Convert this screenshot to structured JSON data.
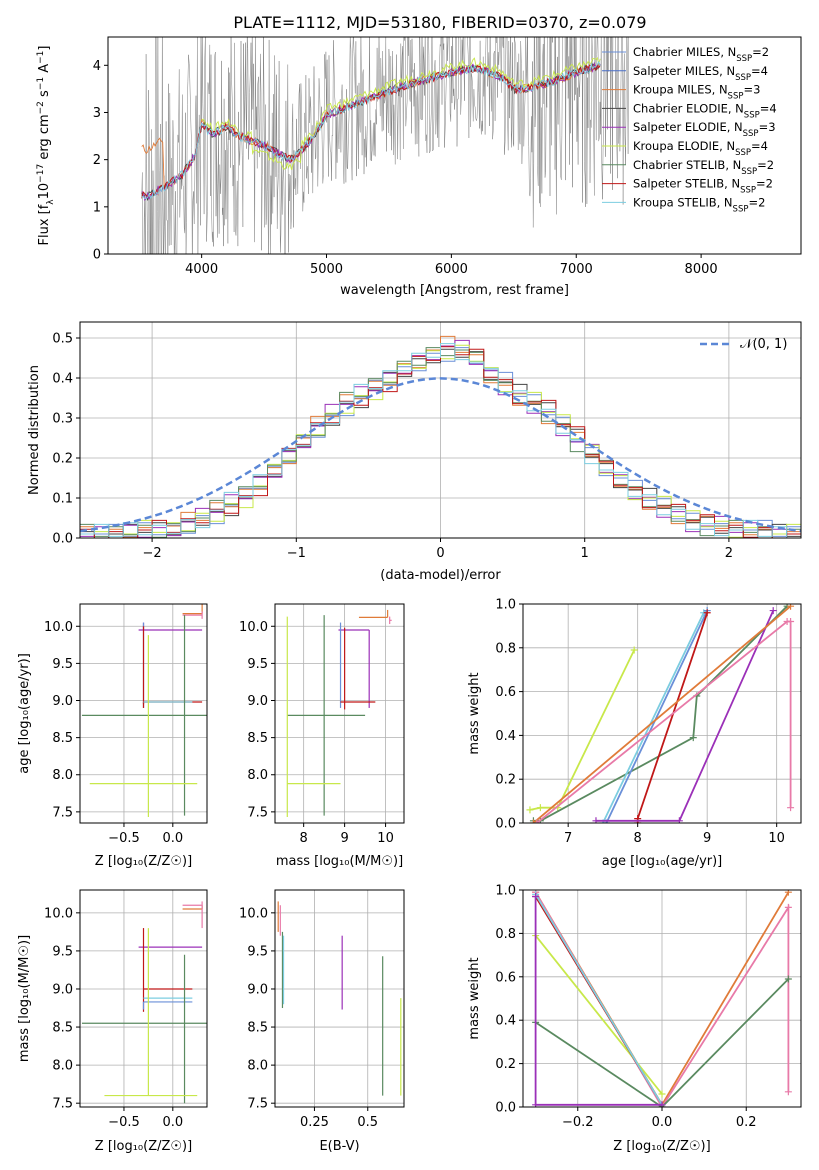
{
  "title": "PLATE=1112, MJD=53180, FIBERID=0370, z=0.079",
  "colors": {
    "chabrier_miles": "#6a8fd8",
    "salpeter_miles": "#4a6fc8",
    "kroupa_miles": "#e07b39",
    "chabrier_elodie": "#444444",
    "salpeter_elodie": "#9b30b8",
    "kroupa_elodie": "#c8e84a",
    "chabrier_stelib": "#5a8a60",
    "salpeter_stelib": "#c01818",
    "kroupa_stelib": "#7ccde0",
    "pink": "#e87aa8",
    "data": "#808080",
    "normal": "#5b87d6"
  },
  "chart_data": [
    {
      "id": "spectrum",
      "type": "line",
      "xlabel": "wavelength [Angstrom, rest frame]",
      "ylabel": "Flux [f_λ 10^-17 erg cm^-2 s^-1 A^-1]",
      "xlim": [
        3250,
        8800
      ],
      "ylim": [
        0,
        4.6
      ],
      "xticks": [
        4000,
        5000,
        6000,
        7000,
        8000
      ],
      "yticks": [
        0,
        1,
        2,
        3,
        4
      ],
      "grid": false,
      "legend_position": "top-right",
      "legend": [
        {
          "label": "Chabrier MILES, N",
          "sub": "SSP",
          "tail": "=2",
          "color": "#6a8fd8"
        },
        {
          "label": "Salpeter MILES, N",
          "sub": "SSP",
          "tail": "=4",
          "color": "#4a6fc8"
        },
        {
          "label": "Kroupa MILES, N",
          "sub": "SSP",
          "tail": "=3",
          "color": "#e07b39"
        },
        {
          "label": "Chabrier ELODIE, N",
          "sub": "SSP",
          "tail": "=4",
          "color": "#444444"
        },
        {
          "label": "Salpeter ELODIE, N",
          "sub": "SSP",
          "tail": "=3",
          "color": "#9b30b8"
        },
        {
          "label": "Kroupa ELODIE, N",
          "sub": "SSP",
          "tail": "=4",
          "color": "#c8e84a"
        },
        {
          "label": "Chabrier STELIB, N",
          "sub": "SSP",
          "tail": "=2",
          "color": "#5a8a60"
        },
        {
          "label": "Salpeter STELIB, N",
          "sub": "SSP",
          "tail": "=2",
          "color": "#c01818"
        },
        {
          "label": "Kroupa STELIB, N",
          "sub": "SSP",
          "tail": "=2",
          "color": "#7ccde0"
        }
      ],
      "model_continuum": {
        "x": [
          3520,
          3560,
          3650,
          3750,
          3850,
          3950,
          4000,
          4050,
          4100,
          4200,
          4300,
          4400,
          4500,
          4600,
          4700,
          4800,
          4900,
          5000,
          5200,
          5400,
          5600,
          5800,
          6000,
          6200,
          6400,
          6500,
          6600,
          6800,
          7000,
          7200
        ],
        "y": [
          1.25,
          1.2,
          1.35,
          1.5,
          1.7,
          2.1,
          2.8,
          2.6,
          2.55,
          2.7,
          2.5,
          2.4,
          2.3,
          2.15,
          2.0,
          2.2,
          2.5,
          2.95,
          3.15,
          3.35,
          3.55,
          3.7,
          3.85,
          3.95,
          3.75,
          3.5,
          3.5,
          3.65,
          3.85,
          4.0
        ]
      }
    },
    {
      "id": "residuals",
      "type": "bar",
      "xlabel": "(data-model)/error",
      "ylabel": "Normed distribution",
      "xlim": [
        -2.5,
        2.5
      ],
      "ylim": [
        0,
        0.54
      ],
      "xticks": [
        -2,
        -1,
        0,
        1,
        2
      ],
      "yticks": [
        0.0,
        0.1,
        0.2,
        0.3,
        0.4,
        0.5
      ],
      "grid": true,
      "legend_position": "top-right",
      "legend": [
        {
          "label": "𝒩(0, 1)",
          "color": "#5b87d6"
        }
      ],
      "bin_width": 0.1,
      "bin_start": -2.5,
      "series": [
        {
          "values": [
            0.01,
            0.01,
            0.01,
            0.01,
            0.02,
            0.02,
            0.02,
            0.03,
            0.05,
            0.06,
            0.08,
            0.1,
            0.13,
            0.16,
            0.2,
            0.24,
            0.27,
            0.3,
            0.33,
            0.35,
            0.37,
            0.39,
            0.41,
            0.43,
            0.45,
            0.46,
            0.47,
            0.46,
            0.42,
            0.39,
            0.36,
            0.34,
            0.32,
            0.29,
            0.26,
            0.22,
            0.18,
            0.15,
            0.12,
            0.1,
            0.08,
            0.06,
            0.05,
            0.04,
            0.03,
            0.02,
            0.02,
            0.02,
            0.01,
            0.01
          ]
        },
        {
          "values": [
            0.01,
            0.01,
            0.01,
            0.02,
            0.02,
            0.02,
            0.03,
            0.04,
            0.05,
            0.07,
            0.09,
            0.11,
            0.14,
            0.17,
            0.21,
            0.25,
            0.28,
            0.31,
            0.34,
            0.36,
            0.38,
            0.4,
            0.43,
            0.45,
            0.47,
            0.48,
            0.47,
            0.44,
            0.4,
            0.37,
            0.35,
            0.33,
            0.31,
            0.28,
            0.24,
            0.21,
            0.17,
            0.14,
            0.11,
            0.09,
            0.07,
            0.06,
            0.04,
            0.03,
            0.03,
            0.02,
            0.02,
            0.01,
            0.01,
            0.01
          ]
        }
      ],
      "normal_curve": {
        "mean": 0,
        "sigma": 1,
        "label": "𝒩(0, 1)"
      }
    },
    {
      "id": "age-vs-Z",
      "type": "scatter",
      "xlabel": "Z [log10(Z/Z☉)]",
      "ylabel": "age [log10(age/yr)]",
      "xlim": [
        -0.95,
        0.35
      ],
      "ylim": [
        7.35,
        10.3
      ],
      "xticks": [
        -0.5,
        0.0
      ],
      "yticks": [
        7.5,
        8.0,
        8.5,
        9.0,
        9.5,
        10.0
      ],
      "grid": true,
      "points": [
        {
          "x": 0.3,
          "y": 10.17,
          "xerr": [
            0.2,
            0.0
          ],
          "yerr": [
            0.0,
            0.15
          ],
          "color": "#e07b39"
        },
        {
          "x": 0.3,
          "y": 10.15,
          "xerr": [
            0.2,
            0.0
          ],
          "yerr": [
            0.05,
            0.05
          ],
          "color": "#e87aa8"
        },
        {
          "x": -0.3,
          "y": 9.95,
          "xerr": [
            0.05,
            0.6
          ],
          "yerr": [
            0.0,
            0.1
          ],
          "color": "#9b30b8"
        },
        {
          "x": -0.3,
          "y": 9.5,
          "xerr": [
            0.0,
            0.0
          ],
          "yerr": [
            0.6,
            0.55
          ],
          "color": "#6a8fd8"
        },
        {
          "x": -0.3,
          "y": 9.5,
          "xerr": [
            0.0,
            0.0
          ],
          "yerr": [
            0.55,
            0.5
          ],
          "color": "#c01818"
        },
        {
          "x": -0.3,
          "y": 8.98,
          "xerr": [
            0.0,
            0.6
          ],
          "yerr": [
            0.08,
            0.0
          ],
          "color": "#c01818"
        },
        {
          "x": -0.3,
          "y": 8.98,
          "xerr": [
            0.0,
            0.5
          ],
          "yerr": [
            0.0,
            0.0
          ],
          "color": "#7ccde0"
        },
        {
          "x": 0.12,
          "y": 8.8,
          "xerr": [
            1.05,
            0.25
          ],
          "yerr": [
            1.35,
            1.35
          ],
          "color": "#5a8a60"
        },
        {
          "x": -0.25,
          "y": 7.88,
          "xerr": [
            0.6,
            0.5
          ],
          "yerr": [
            0.45,
            2.0
          ],
          "color": "#c8e84a"
        }
      ]
    },
    {
      "id": "age-vs-mass",
      "type": "scatter",
      "xlabel": "mass [log10(M/M☉)]",
      "ylabel": "",
      "xlim": [
        7.3,
        10.45
      ],
      "ylim": [
        7.35,
        10.3
      ],
      "xticks": [
        8,
        9,
        10
      ],
      "yticks": [
        7.5,
        8.0,
        8.5,
        9.0,
        9.5,
        10.0
      ],
      "grid": true,
      "points": [
        {
          "x": 10.05,
          "y": 10.12,
          "xerr": [
            0.7,
            0.0
          ],
          "yerr": [
            0.0,
            0.1
          ],
          "color": "#e07b39"
        },
        {
          "x": 10.1,
          "y": 10.08,
          "xerr": [
            0.0,
            0.05
          ],
          "yerr": [
            0.05,
            0.05
          ],
          "color": "#e87aa8"
        },
        {
          "x": 9.1,
          "y": 9.95,
          "xerr": [
            0.25,
            0.5
          ],
          "yerr": [
            0.0,
            0.0
          ],
          "color": "#9b30b8"
        },
        {
          "x": 9.6,
          "y": 9.95,
          "xerr": [
            0.0,
            0.0
          ],
          "yerr": [
            1.05,
            0.0
          ],
          "color": "#9b30b8"
        },
        {
          "x": 8.9,
          "y": 9.5,
          "xerr": [
            0.0,
            0.0
          ],
          "yerr": [
            0.6,
            0.55
          ],
          "color": "#6a8fd8"
        },
        {
          "x": 9.0,
          "y": 8.98,
          "xerr": [
            0.1,
            0.75
          ],
          "yerr": [
            0.1,
            1.0
          ],
          "color": "#c01818"
        },
        {
          "x": 8.5,
          "y": 8.8,
          "xerr": [
            0.9,
            1.0
          ],
          "yerr": [
            1.35,
            1.35
          ],
          "color": "#5a8a60"
        },
        {
          "x": 7.6,
          "y": 7.88,
          "xerr": [
            0.0,
            1.3
          ],
          "yerr": [
            0.45,
            2.25
          ],
          "color": "#c8e84a"
        }
      ]
    },
    {
      "id": "cumulative-mass-weight-vs-age",
      "type": "line",
      "xlabel": "age [log10(age/yr)]",
      "ylabel": "mass weight",
      "xlim": [
        6.35,
        10.35
      ],
      "ylim": [
        0,
        1.0
      ],
      "xticks": [
        7,
        8,
        9,
        10
      ],
      "yticks": [
        0.0,
        0.2,
        0.4,
        0.6,
        0.8,
        1.0
      ],
      "grid": true,
      "series": [
        {
          "x": [
            6.45,
            6.6,
            6.85,
            7.95
          ],
          "y": [
            0.06,
            0.07,
            0.07,
            0.79
          ],
          "color": "#c8e84a"
        },
        {
          "x": [
            6.5,
            6.6,
            8.8,
            8.85,
            10.15
          ],
          "y": [
            0.01,
            0.01,
            0.39,
            0.58,
            0.99
          ],
          "color": "#5a8a60"
        },
        {
          "x": [
            7.5,
            8.95,
            9.0
          ],
          "y": [
            0.0,
            0.96,
            0.97
          ],
          "color": "#7ccde0"
        },
        {
          "x": [
            7.55,
            9.0
          ],
          "y": [
            0.0,
            0.97
          ],
          "color": "#6a8fd8"
        },
        {
          "x": [
            8.0,
            8.0,
            9.0
          ],
          "y": [
            0.0,
            0.02,
            0.96
          ],
          "color": "#c01818"
        },
        {
          "x": [
            7.4,
            8.6,
            9.95
          ],
          "y": [
            0.01,
            0.01,
            0.97
          ],
          "color": "#9b30b8"
        },
        {
          "x": [
            6.5,
            10.2
          ],
          "y": [
            0.0,
            0.99
          ],
          "color": "#e07b39"
        },
        {
          "x": [
            6.55,
            10.15,
            10.2,
            10.2
          ],
          "y": [
            0.0,
            0.92,
            0.92,
            0.07
          ],
          "color": "#e87aa8"
        }
      ]
    },
    {
      "id": "mass-vs-Z",
      "type": "scatter",
      "xlabel": "Z [log10(Z/Z☉)]",
      "ylabel": "mass [log10(M/M☉)]",
      "xlim": [
        -0.95,
        0.35
      ],
      "ylim": [
        7.45,
        10.3
      ],
      "xticks": [
        -0.5,
        0.0
      ],
      "yticks": [
        7.5,
        8.0,
        8.5,
        9.0,
        9.5,
        10.0
      ],
      "grid": true,
      "points": [
        {
          "x": 0.3,
          "y": 10.05,
          "xerr": [
            0.2,
            0.0
          ],
          "yerr": [
            0.0,
            0.05
          ],
          "color": "#e07b39"
        },
        {
          "x": 0.3,
          "y": 10.1,
          "xerr": [
            0.2,
            0.0
          ],
          "yerr": [
            0.3,
            0.05
          ],
          "color": "#e87aa8"
        },
        {
          "x": -0.3,
          "y": 9.55,
          "xerr": [
            0.05,
            0.6
          ],
          "yerr": [
            0.0,
            0.0
          ],
          "color": "#9b30b8"
        },
        {
          "x": -0.3,
          "y": 9.25,
          "xerr": [
            0.0,
            0.0
          ],
          "yerr": [
            0.55,
            0.55
          ],
          "color": "#c01818"
        },
        {
          "x": -0.3,
          "y": 9.0,
          "xerr": [
            0.0,
            0.5
          ],
          "yerr": [
            0.0,
            0.0
          ],
          "color": "#c01818"
        },
        {
          "x": -0.3,
          "y": 8.88,
          "xerr": [
            0.0,
            0.5
          ],
          "yerr": [
            0.0,
            0.0
          ],
          "color": "#7ccde0"
        },
        {
          "x": -0.3,
          "y": 8.83,
          "xerr": [
            0.0,
            0.5
          ],
          "yerr": [
            0.1,
            0.0
          ],
          "color": "#6a8fd8"
        },
        {
          "x": 0.12,
          "y": 8.55,
          "xerr": [
            1.05,
            0.25
          ],
          "yerr": [
            1.05,
            0.9
          ],
          "color": "#5a8a60"
        },
        {
          "x": -0.25,
          "y": 7.6,
          "xerr": [
            0.45,
            0.5
          ],
          "yerr": [
            0.0,
            2.2
          ],
          "color": "#c8e84a"
        }
      ]
    },
    {
      "id": "mass-vs-ebv",
      "type": "scatter",
      "xlabel": "E(B-V)",
      "ylabel": "",
      "xlim": [
        0.065,
        0.67
      ],
      "ylim": [
        7.45,
        10.3
      ],
      "xticks": [
        0.25,
        0.5
      ],
      "yticks": [
        7.5,
        8.0,
        8.5,
        9.0,
        9.5,
        10.0
      ],
      "grid": true,
      "segments": [
        {
          "x": 0.08,
          "y0": 9.75,
          "y1": 10.15,
          "color": "#e07b39"
        },
        {
          "x": 0.09,
          "y0": 9.7,
          "y1": 10.1,
          "color": "#e87aa8"
        },
        {
          "x": 0.1,
          "y0": 8.75,
          "y1": 9.75,
          "color": "#5a8a60"
        },
        {
          "x": 0.105,
          "y0": 8.8,
          "y1": 9.7,
          "color": "#7ccde0"
        },
        {
          "x": 0.38,
          "y0": 8.73,
          "y1": 9.7,
          "color": "#9b30b8"
        },
        {
          "x": 0.57,
          "y0": 7.6,
          "y1": 9.43,
          "color": "#5a8a60"
        },
        {
          "x": 0.655,
          "y0": 7.6,
          "y1": 8.88,
          "color": "#c8e84a"
        }
      ]
    },
    {
      "id": "cumulative-mass-weight-vs-Z",
      "type": "line",
      "xlabel": "Z [log10(Z/Z☉)]",
      "ylabel": "mass weight",
      "xlim": [
        -0.33,
        0.33
      ],
      "ylim": [
        0,
        1.0
      ],
      "xticks": [
        -0.2,
        0.0,
        0.2
      ],
      "yticks": [
        0.0,
        0.2,
        0.4,
        0.6,
        0.8,
        1.0
      ],
      "grid": true,
      "series": [
        {
          "x": [
            -0.3,
            0.0,
            0.3
          ],
          "y": [
            0.99,
            0.01,
            0.99
          ],
          "color": "#e07b39"
        },
        {
          "x": [
            -0.3,
            0.0,
            0.3,
            0.3
          ],
          "y": [
            0.99,
            0.0,
            0.92,
            0.07
          ],
          "color": "#e87aa8"
        },
        {
          "x": [
            -0.3,
            0.0,
            0.3
          ],
          "y": [
            0.39,
            0.0,
            0.59
          ],
          "color": "#5a8a60"
        },
        {
          "x": [
            -0.3,
            0.0
          ],
          "y": [
            0.79,
            0.06
          ],
          "color": "#c8e84a"
        },
        {
          "x": [
            -0.3,
            0.0
          ],
          "y": [
            0.97,
            0.01
          ],
          "color": "#c01818"
        },
        {
          "x": [
            -0.3,
            0.0
          ],
          "y": [
            0.98,
            0.01
          ],
          "color": "#7ccde0"
        },
        {
          "x": [
            -0.3,
            -0.3,
            0.0
          ],
          "y": [
            0.97,
            0.01,
            0.01
          ],
          "color": "#9b30b8"
        }
      ]
    }
  ]
}
